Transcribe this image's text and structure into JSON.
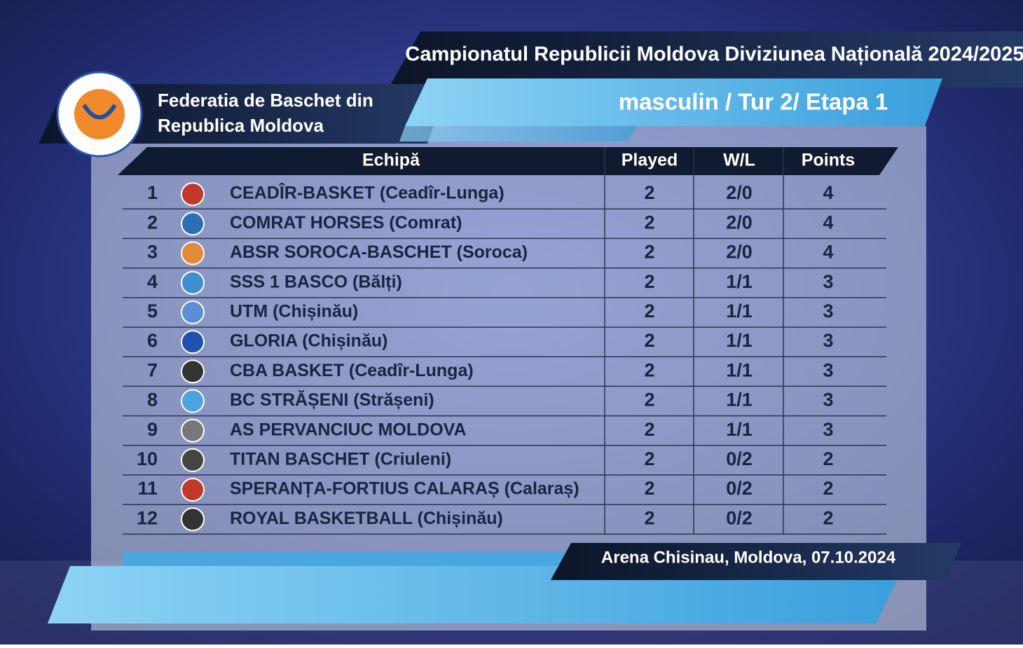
{
  "header": {
    "title": "Campionatul Republicii Moldova Diviziunea Națională 2024/2025",
    "federation": [
      "Federatia de Baschet din",
      "Republica Moldova"
    ],
    "subtitle": "masculin / Tur 2/ Etapa 1"
  },
  "table": {
    "columns": [
      "Echipă",
      "Played",
      "W/L",
      "Points"
    ],
    "rows": [
      [
        1,
        "CEADÎR-BASKET (Ceadîr-Lunga)",
        2,
        "2/0",
        4
      ],
      [
        2,
        "COMRAT HORSES (Comrat)",
        2,
        "2/0",
        4
      ],
      [
        3,
        "ABSR SOROCA-BASCHET (Soroca)",
        2,
        "2/0",
        4
      ],
      [
        4,
        "SSS 1 BASCO (Bălți)",
        2,
        "1/1",
        3
      ],
      [
        5,
        "UTM (Chișinău)",
        2,
        "1/1",
        3
      ],
      [
        6,
        "GLORIA (Chișinău)",
        2,
        "1/1",
        3
      ],
      [
        7,
        "CBA BASKET (Ceadîr-Lunga)",
        2,
        "1/1",
        3
      ],
      [
        8,
        "BC STRĂȘENI (Strășeni)",
        2,
        "1/1",
        3
      ],
      [
        9,
        "AS PERVANCIUC MOLDOVA",
        2,
        "1/1",
        3
      ],
      [
        10,
        "TITAN BASCHET (Criuleni)",
        2,
        "0/2",
        2
      ],
      [
        11,
        "SPERANȚA-FORTIUS CALARAȘ (Calaraș)",
        2,
        "0/2",
        2
      ],
      [
        12,
        "ROYAL BASKETBALL (Chișinău)",
        2,
        "0/2",
        2
      ]
    ]
  },
  "footer": "Arena Chisinau, Moldova, 07.10.2024"
}
